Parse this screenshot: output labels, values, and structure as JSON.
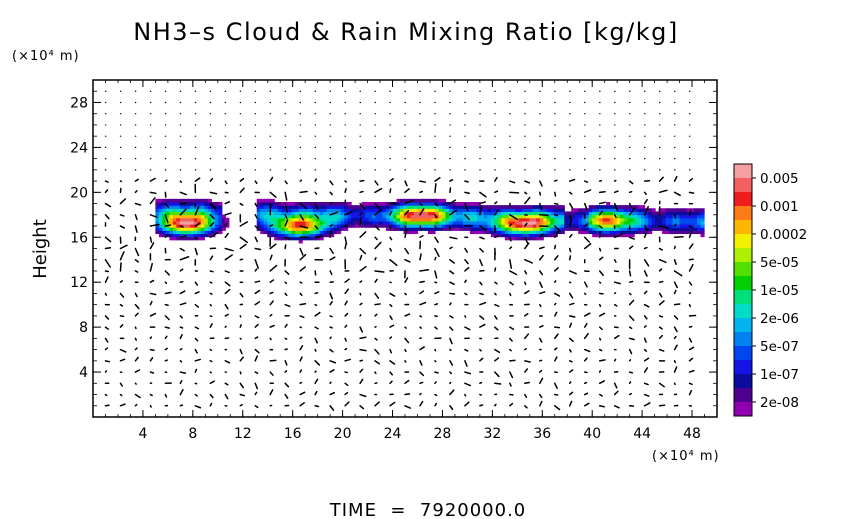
{
  "chart_data": {
    "type": "heatmap",
    "title": "NH3–s Cloud & Rain Mixing Ratio [kg/kg]",
    "ylabel": "Height",
    "y_unit": "(×10⁴ m)",
    "x_unit": "(×10⁴ m)",
    "xlim": [
      0,
      50
    ],
    "ylim": [
      0,
      30
    ],
    "x_ticks": [
      4,
      8,
      12,
      16,
      20,
      24,
      28,
      32,
      36,
      40,
      44,
      48
    ],
    "y_ticks": [
      4,
      8,
      12,
      16,
      20,
      24,
      28
    ],
    "footer": "TIME  =  7920000.0",
    "colorbar": {
      "labels": [
        "0.005",
        "0.001",
        "0.0002",
        "5e-05",
        "1e-05",
        "2e-06",
        "5e-07",
        "1e-07",
        "2e-08"
      ],
      "colors": [
        "#f4a0a0",
        "#f26060",
        "#ee1e1e",
        "#fb7c16",
        "#ffb600",
        "#f4ee00",
        "#aef000",
        "#52e000",
        "#00d000",
        "#00e07a",
        "#00dcc8",
        "#00b4f0",
        "#0082f0",
        "#0046f0",
        "#1414e6",
        "#0c0c9e",
        "#500090",
        "#9000b0"
      ]
    },
    "cloud_layer": {
      "x_range": [
        5,
        49
      ],
      "y_range": [
        15.5,
        19.8
      ],
      "core_maxima": [
        {
          "x": 7.5,
          "y": 17.2,
          "value": 0.005
        },
        {
          "x": 16.5,
          "y": 17.0,
          "value": 0.001
        },
        {
          "x": 26.5,
          "y": 18.0,
          "value": 0.0002
        },
        {
          "x": 34.5,
          "y": 17.2,
          "value": 0.001
        },
        {
          "x": 41.0,
          "y": 17.5,
          "value": 1e-05
        }
      ]
    },
    "wind_vectors": "velocity arrows on regular grid"
  }
}
